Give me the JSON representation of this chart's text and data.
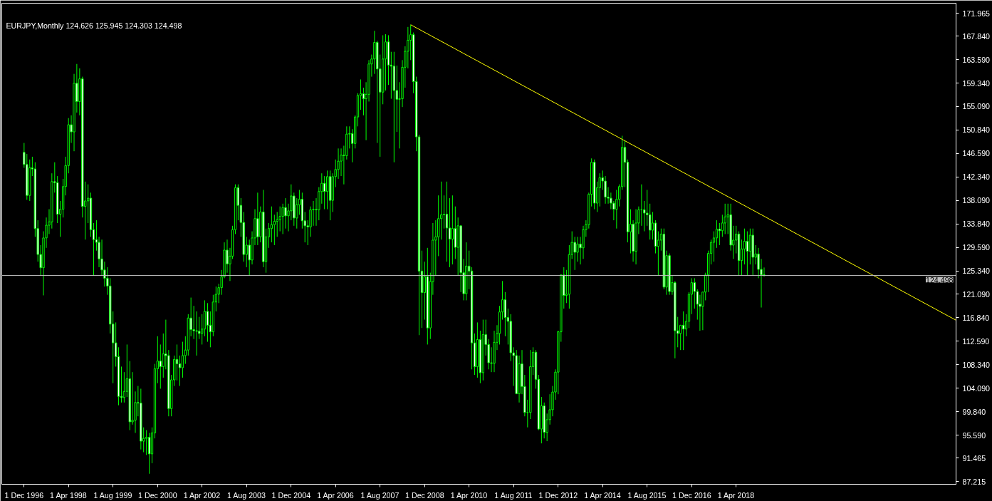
{
  "chart_data": {
    "type": "candlestick",
    "title": "EURJPY,Monthly  124.626 125.945 124.303 124.498",
    "xlim": [
      "1996-04-01",
      "2024-11-01"
    ],
    "ylim": [
      86.7,
      173.8
    ],
    "xticks": [
      {
        "value": "1996-12-01",
        "label": "1 Dec 1996"
      },
      {
        "value": "1998-04-01",
        "label": "1 Apr 1998"
      },
      {
        "value": "1999-08-01",
        "label": "1 Aug 1999"
      },
      {
        "value": "2000-12-01",
        "label": "1 Dec 2000"
      },
      {
        "value": "2002-04-01",
        "label": "1 Apr 2002"
      },
      {
        "value": "2003-08-01",
        "label": "1 Aug 2003"
      },
      {
        "value": "2004-12-01",
        "label": "1 Dec 2004"
      },
      {
        "value": "2006-04-01",
        "label": "1 Apr 2006"
      },
      {
        "value": "2007-08-01",
        "label": "1 Aug 2007"
      },
      {
        "value": "2008-12-01",
        "label": "1 Dec 2008"
      },
      {
        "value": "2010-04-01",
        "label": "1 Apr 2010"
      },
      {
        "value": "2011-08-01",
        "label": "1 Aug 2011"
      },
      {
        "value": "2012-12-01",
        "label": "1 Dec 2012"
      },
      {
        "value": "2014-04-01",
        "label": "1 Apr 2014"
      },
      {
        "value": "2015-08-01",
        "label": "1 Aug 2015"
      },
      {
        "value": "2016-12-01",
        "label": "1 Dec 2016"
      },
      {
        "value": "2018-04-01",
        "label": "1 Apr 2018"
      }
    ],
    "yticks": [
      {
        "value": 171.965,
        "label": "171.965"
      },
      {
        "value": 167.84,
        "label": "167.840"
      },
      {
        "value": 163.59,
        "label": "163.590"
      },
      {
        "value": 159.34,
        "label": "159.340"
      },
      {
        "value": 155.09,
        "label": "155.090"
      },
      {
        "value": 150.84,
        "label": "150.840"
      },
      {
        "value": 146.59,
        "label": "146.590"
      },
      {
        "value": 142.34,
        "label": "142.340"
      },
      {
        "value": 138.09,
        "label": "138.090"
      },
      {
        "value": 133.84,
        "label": "133.840"
      },
      {
        "value": 129.59,
        "label": "129.590"
      },
      {
        "value": 125.34,
        "label": "125.340"
      },
      {
        "value": 121.09,
        "label": "121.090"
      },
      {
        "value": 116.84,
        "label": "116.840"
      },
      {
        "value": 112.59,
        "label": "112.590"
      },
      {
        "value": 108.34,
        "label": "108.340"
      },
      {
        "value": 104.09,
        "label": "104.090"
      },
      {
        "value": 99.84,
        "label": "99.840"
      },
      {
        "value": 95.59,
        "label": "95.590"
      },
      {
        "value": 91.465,
        "label": "91.465"
      },
      {
        "value": 87.215,
        "label": "87.215"
      }
    ],
    "ref_lines": [
      {
        "axis": "y",
        "value": 124.498,
        "label": "124.498",
        "color": "#c0c0c0"
      }
    ],
    "series": [
      {
        "type": "candlestick",
        "color": "#00ff00",
        "x": [
          "1996-12",
          "1997-01",
          "1997-02",
          "1997-03",
          "1997-04",
          "1997-05",
          "1997-06",
          "1997-07",
          "1997-08",
          "1997-09",
          "1997-10",
          "1997-11",
          "1997-12",
          "1998-01",
          "1998-02",
          "1998-03",
          "1998-04",
          "1998-05",
          "1998-06",
          "1998-07",
          "1998-08",
          "1998-09",
          "1998-10",
          "1998-11",
          "1998-12",
          "1999-01",
          "1999-02",
          "1999-03",
          "1999-04",
          "1999-05",
          "1999-06",
          "1999-07",
          "1999-08",
          "1999-09",
          "1999-10",
          "1999-11",
          "1999-12",
          "2000-01",
          "2000-02",
          "2000-03",
          "2000-04",
          "2000-05",
          "2000-06",
          "2000-07",
          "2000-08",
          "2000-09",
          "2000-10",
          "2000-11",
          "2000-12",
          "2001-01",
          "2001-02",
          "2001-03",
          "2001-04",
          "2001-05",
          "2001-06",
          "2001-07",
          "2001-08",
          "2001-09",
          "2001-10",
          "2001-11",
          "2001-12",
          "2002-01",
          "2002-02",
          "2002-03",
          "2002-04",
          "2002-05",
          "2002-06",
          "2002-07",
          "2002-08",
          "2002-09",
          "2002-10",
          "2002-11",
          "2002-12",
          "2003-01",
          "2003-02",
          "2003-03",
          "2003-04",
          "2003-05",
          "2003-06",
          "2003-07",
          "2003-08",
          "2003-09",
          "2003-10",
          "2003-11",
          "2003-12",
          "2004-01",
          "2004-02",
          "2004-03",
          "2004-04",
          "2004-05",
          "2004-06",
          "2004-07",
          "2004-08",
          "2004-09",
          "2004-10",
          "2004-11",
          "2004-12",
          "2005-01",
          "2005-02",
          "2005-03",
          "2005-04",
          "2005-05",
          "2005-06",
          "2005-07",
          "2005-08",
          "2005-09",
          "2005-10",
          "2005-11",
          "2005-12",
          "2006-01",
          "2006-02",
          "2006-03",
          "2006-04",
          "2006-05",
          "2006-06",
          "2006-07",
          "2006-08",
          "2006-09",
          "2006-10",
          "2006-11",
          "2006-12",
          "2007-01",
          "2007-02",
          "2007-03",
          "2007-04",
          "2007-05",
          "2007-06",
          "2007-07",
          "2007-08",
          "2007-09",
          "2007-10",
          "2007-11",
          "2007-12",
          "2008-01",
          "2008-02",
          "2008-03",
          "2008-04",
          "2008-05",
          "2008-06",
          "2008-07",
          "2008-08",
          "2008-09",
          "2008-10",
          "2008-11",
          "2008-12",
          "2009-01",
          "2009-02",
          "2009-03",
          "2009-04",
          "2009-05",
          "2009-06",
          "2009-07",
          "2009-08",
          "2009-09",
          "2009-10",
          "2009-11",
          "2009-12",
          "2010-01",
          "2010-02",
          "2010-03",
          "2010-04",
          "2010-05",
          "2010-06",
          "2010-07",
          "2010-08",
          "2010-09",
          "2010-10",
          "2010-11",
          "2010-12",
          "2011-01",
          "2011-02",
          "2011-03",
          "2011-04",
          "2011-05",
          "2011-06",
          "2011-07",
          "2011-08",
          "2011-09",
          "2011-10",
          "2011-11",
          "2011-12",
          "2012-01",
          "2012-02",
          "2012-03",
          "2012-04",
          "2012-05",
          "2012-06",
          "2012-07",
          "2012-08",
          "2012-09",
          "2012-10",
          "2012-11",
          "2012-12",
          "2013-01",
          "2013-02",
          "2013-03",
          "2013-04",
          "2013-05",
          "2013-06",
          "2013-07",
          "2013-08",
          "2013-09",
          "2013-10",
          "2013-11",
          "2013-12",
          "2014-01",
          "2014-02",
          "2014-03",
          "2014-04",
          "2014-05",
          "2014-06",
          "2014-07",
          "2014-08",
          "2014-09",
          "2014-10",
          "2014-11",
          "2014-12",
          "2015-01",
          "2015-02",
          "2015-03",
          "2015-04",
          "2015-05",
          "2015-06",
          "2015-07",
          "2015-08",
          "2015-09",
          "2015-10",
          "2015-11",
          "2015-12",
          "2016-01",
          "2016-02",
          "2016-03",
          "2016-04",
          "2016-05",
          "2016-06",
          "2016-07",
          "2016-08",
          "2016-09",
          "2016-10",
          "2016-11",
          "2016-12",
          "2017-01",
          "2017-02",
          "2017-03",
          "2017-04",
          "2017-05",
          "2017-06",
          "2017-07",
          "2017-08",
          "2017-09",
          "2017-10",
          "2017-11",
          "2017-12",
          "2018-01",
          "2018-02",
          "2018-03",
          "2018-04",
          "2018-05",
          "2018-06",
          "2018-07",
          "2018-08",
          "2018-09",
          "2018-10",
          "2018-11",
          "2018-12",
          "2019-01",
          "2019-02"
        ],
        "ohlc": [
          [
            146.8,
            148.5,
            144.0,
            144.6
          ],
          [
            144.6,
            146.5,
            138.2,
            139.0
          ],
          [
            139.0,
            145.5,
            138.0,
            144.0
          ],
          [
            144.0,
            146.0,
            142.5,
            143.8
          ],
          [
            143.8,
            145.0,
            131.5,
            133.0
          ],
          [
            133.0,
            134.5,
            127.0,
            128.3
          ],
          [
            128.3,
            130.0,
            124.5,
            125.9
          ],
          [
            125.9,
            132.5,
            120.9,
            131.3
          ],
          [
            131.3,
            135.0,
            129.5,
            133.6
          ],
          [
            133.6,
            136.5,
            132.0,
            134.2
          ],
          [
            134.2,
            143.0,
            133.0,
            141.5
          ],
          [
            141.5,
            145.0,
            139.5,
            141.3
          ],
          [
            141.3,
            142.5,
            134.0,
            135.6
          ],
          [
            135.6,
            138.0,
            131.5,
            136.5
          ],
          [
            136.5,
            142.0,
            135.0,
            140.6
          ],
          [
            140.6,
            146.0,
            139.0,
            144.4
          ],
          [
            144.4,
            153.0,
            143.0,
            151.8
          ],
          [
            151.8,
            153.5,
            148.5,
            150.5
          ],
          [
            150.5,
            161.0,
            147.0,
            159.3
          ],
          [
            159.3,
            162.8,
            154.0,
            156.0
          ],
          [
            156.0,
            162.0,
            153.5,
            160.1
          ],
          [
            160.1,
            160.5,
            135.0,
            137.0
          ],
          [
            137.0,
            141.5,
            131.0,
            138.0
          ],
          [
            138.0,
            141.0,
            134.0,
            138.5
          ],
          [
            138.5,
            139.5,
            131.5,
            132.8
          ],
          [
            132.8,
            134.0,
            124.5,
            131.0
          ],
          [
            131.0,
            134.5,
            129.0,
            130.5
          ],
          [
            130.5,
            131.5,
            126.0,
            127.5
          ],
          [
            127.5,
            131.0,
            124.5,
            125.5
          ],
          [
            125.5,
            127.0,
            122.5,
            124.0
          ],
          [
            124.0,
            126.0,
            121.0,
            122.6
          ],
          [
            122.6,
            124.0,
            114.0,
            115.7
          ],
          [
            115.7,
            118.0,
            105.0,
            112.3
          ],
          [
            112.3,
            116.0,
            108.0,
            109.8
          ],
          [
            109.8,
            111.5,
            101.0,
            102.6
          ],
          [
            102.6,
            108.0,
            101.5,
            102.4
          ],
          [
            102.4,
            107.0,
            101.5,
            103.5
          ],
          [
            103.5,
            112.0,
            102.5,
            105.8
          ],
          [
            105.8,
            109.0,
            96.5,
            98.0
          ],
          [
            98.0,
            107.0,
            97.5,
            98.3
          ],
          [
            98.3,
            103.5,
            96.0,
            101.5
          ],
          [
            101.5,
            104.5,
            99.0,
            101.4
          ],
          [
            101.4,
            104.0,
            93.0,
            94.5
          ],
          [
            94.5,
            97.0,
            92.5,
            95.0
          ],
          [
            95.0,
            96.5,
            92.0,
            95.2
          ],
          [
            95.2,
            96.0,
            88.6,
            92.2
          ],
          [
            92.2,
            97.0,
            90.5,
            96.0
          ],
          [
            96.0,
            108.5,
            95.0,
            107.6
          ],
          [
            107.6,
            113.5,
            105.0,
            109.0
          ],
          [
            109.0,
            112.0,
            104.0,
            108.0
          ],
          [
            108.0,
            114.0,
            106.0,
            110.3
          ],
          [
            110.3,
            116.5,
            107.5,
            110.0
          ],
          [
            110.0,
            111.0,
            99.0,
            100.4
          ],
          [
            100.4,
            106.5,
            99.0,
            105.6
          ],
          [
            105.6,
            110.0,
            104.5,
            109.3
          ],
          [
            109.3,
            112.0,
            105.5,
            108.5
          ],
          [
            108.5,
            110.0,
            104.5,
            107.8
          ],
          [
            107.8,
            112.5,
            106.0,
            110.0
          ],
          [
            110.0,
            113.5,
            108.5,
            111.0
          ],
          [
            111.0,
            117.5,
            110.0,
            116.8
          ],
          [
            116.8,
            120.5,
            113.5,
            114.7
          ],
          [
            114.7,
            119.0,
            113.0,
            114.5
          ],
          [
            114.5,
            118.0,
            110.0,
            114.4
          ],
          [
            114.4,
            117.0,
            113.0,
            114.0
          ],
          [
            114.0,
            117.5,
            112.0,
            114.8
          ],
          [
            114.8,
            120.0,
            113.5,
            118.0
          ],
          [
            118.0,
            119.5,
            112.5,
            115.5
          ],
          [
            115.5,
            118.0,
            111.5,
            114.3
          ],
          [
            114.3,
            121.0,
            113.5,
            119.7
          ],
          [
            119.7,
            122.5,
            118.0,
            121.1
          ],
          [
            121.1,
            123.0,
            119.5,
            122.3
          ],
          [
            122.3,
            125.5,
            121.0,
            124.3
          ],
          [
            124.3,
            130.5,
            124.0,
            129.1
          ],
          [
            129.1,
            131.0,
            125.0,
            126.6
          ],
          [
            126.6,
            129.5,
            123.5,
            128.0
          ],
          [
            128.0,
            133.5,
            127.5,
            132.8
          ],
          [
            132.8,
            141.0,
            132.0,
            140.4
          ],
          [
            140.4,
            141.0,
            134.5,
            137.2
          ],
          [
            137.2,
            138.5,
            131.5,
            134.1
          ],
          [
            134.1,
            136.0,
            127.0,
            128.3
          ],
          [
            128.3,
            131.5,
            126.0,
            130.0
          ],
          [
            130.0,
            131.0,
            124.5,
            127.3
          ],
          [
            127.3,
            132.5,
            126.5,
            131.3
          ],
          [
            131.3,
            136.5,
            130.0,
            134.8
          ],
          [
            134.8,
            139.5,
            130.0,
            131.5
          ],
          [
            131.5,
            137.0,
            130.5,
            136.0
          ],
          [
            136.0,
            140.0,
            126.0,
            127.0
          ],
          [
            127.0,
            133.0,
            125.0,
            131.5
          ],
          [
            131.5,
            134.0,
            129.5,
            133.0
          ],
          [
            133.0,
            137.0,
            130.5,
            133.7
          ],
          [
            133.7,
            135.5,
            130.0,
            134.3
          ],
          [
            134.3,
            136.0,
            131.5,
            134.6
          ],
          [
            134.6,
            137.0,
            132.5,
            135.2
          ],
          [
            135.2,
            137.5,
            132.0,
            136.8
          ],
          [
            136.8,
            138.5,
            133.0,
            135.3
          ],
          [
            135.3,
            137.5,
            132.5,
            136.2
          ],
          [
            136.2,
            141.0,
            134.5,
            138.9
          ],
          [
            138.9,
            139.5,
            133.5,
            134.9
          ],
          [
            134.9,
            138.5,
            133.0,
            137.3
          ],
          [
            137.3,
            140.0,
            135.5,
            138.3
          ],
          [
            138.3,
            139.5,
            133.0,
            134.4
          ],
          [
            134.4,
            136.0,
            130.5,
            133.5
          ],
          [
            133.5,
            134.5,
            130.0,
            133.3
          ],
          [
            133.3,
            137.0,
            131.5,
            136.4
          ],
          [
            136.4,
            138.0,
            133.5,
            136.5
          ],
          [
            136.5,
            138.5,
            133.5,
            136.4
          ],
          [
            136.4,
            140.5,
            134.5,
            139.7
          ],
          [
            139.7,
            143.0,
            137.5,
            141.2
          ],
          [
            141.2,
            142.5,
            136.5,
            139.7
          ],
          [
            139.7,
            143.5,
            136.5,
            142.4
          ],
          [
            142.4,
            143.5,
            134.5,
            138.1
          ],
          [
            138.1,
            143.0,
            136.0,
            142.4
          ],
          [
            142.4,
            145.5,
            140.5,
            143.7
          ],
          [
            143.7,
            147.5,
            142.0,
            145.2
          ],
          [
            145.2,
            147.5,
            142.5,
            146.3
          ],
          [
            146.3,
            148.0,
            141.0,
            146.2
          ],
          [
            146.2,
            151.5,
            145.5,
            150.1
          ],
          [
            150.1,
            151.5,
            147.5,
            150.2
          ],
          [
            150.2,
            151.0,
            145.0,
            148.4
          ],
          [
            148.4,
            153.5,
            147.5,
            153.2
          ],
          [
            153.2,
            157.5,
            151.5,
            157.1
          ],
          [
            157.1,
            160.0,
            154.5,
            157.4
          ],
          [
            157.4,
            158.5,
            153.5,
            156.5
          ],
          [
            156.5,
            159.5,
            149.0,
            157.3
          ],
          [
            157.3,
            163.5,
            156.0,
            162.8
          ],
          [
            162.8,
            164.5,
            160.5,
            163.7
          ],
          [
            163.7,
            168.8,
            161.0,
            166.7
          ],
          [
            166.7,
            167.0,
            148.5,
            161.9
          ],
          [
            161.9,
            164.5,
            146.0,
            157.7
          ],
          [
            157.7,
            168.0,
            155.5,
            163.7
          ],
          [
            163.7,
            168.2,
            158.0,
            166.8
          ],
          [
            166.8,
            168.0,
            159.0,
            162.6
          ],
          [
            162.6,
            165.0,
            156.5,
            162.4
          ],
          [
            162.4,
            165.0,
            145.0,
            158.0
          ],
          [
            158.0,
            162.5,
            150.5,
            156.4
          ],
          [
            156.4,
            159.5,
            147.5,
            156.5
          ],
          [
            156.5,
            163.5,
            155.0,
            162.2
          ],
          [
            162.2,
            166.0,
            158.5,
            165.1
          ],
          [
            165.1,
            169.5,
            162.0,
            167.1
          ],
          [
            167.1,
            169.9,
            163.5,
            168.1
          ],
          [
            168.1,
            168.5,
            157.5,
            159.6
          ],
          [
            159.6,
            160.5,
            147.0,
            149.6
          ],
          [
            149.6,
            150.0,
            113.7,
            125.3
          ],
          [
            125.3,
            129.0,
            115.0,
            121.4
          ],
          [
            121.4,
            127.0,
            116.5,
            124.3
          ],
          [
            124.3,
            129.5,
            112.0,
            115.0
          ],
          [
            115.0,
            125.0,
            113.0,
            123.4
          ],
          [
            123.4,
            134.0,
            121.0,
            130.9
          ],
          [
            130.9,
            134.5,
            124.5,
            131.5
          ],
          [
            131.5,
            139.0,
            128.0,
            134.8
          ],
          [
            134.8,
            141.5,
            131.0,
            135.5
          ],
          [
            135.5,
            139.0,
            133.0,
            135.6
          ],
          [
            135.6,
            141.5,
            127.0,
            133.1
          ],
          [
            133.1,
            138.5,
            126.0,
            131.1
          ],
          [
            131.1,
            139.0,
            126.5,
            133.0
          ],
          [
            133.0,
            137.0,
            127.5,
            129.6
          ],
          [
            129.6,
            135.0,
            124.5,
            133.5
          ],
          [
            133.5,
            133.5,
            121.5,
            125.0
          ],
          [
            125.0,
            127.5,
            120.0,
            121.2
          ],
          [
            121.2,
            130.5,
            120.0,
            126.2
          ],
          [
            126.2,
            129.0,
            122.0,
            125.3
          ],
          [
            125.3,
            126.0,
            107.5,
            112.3
          ],
          [
            112.3,
            114.0,
            106.5,
            108.0
          ],
          [
            108.0,
            116.0,
            106.0,
            112.9
          ],
          [
            112.9,
            114.5,
            105.0,
            106.9
          ],
          [
            106.9,
            116.5,
            105.5,
            113.8
          ],
          [
            113.8,
            116.5,
            110.0,
            112.0
          ],
          [
            112.0,
            113.0,
            107.5,
            108.7
          ],
          [
            108.7,
            111.5,
            107.0,
            108.6
          ],
          [
            108.6,
            114.5,
            107.0,
            112.4
          ],
          [
            112.4,
            115.5,
            111.0,
            114.0
          ],
          [
            114.0,
            119.0,
            112.0,
            117.9
          ],
          [
            117.9,
            123.5,
            116.5,
            120.1
          ],
          [
            120.1,
            121.5,
            113.5,
            116.9
          ],
          [
            116.9,
            118.5,
            112.0,
            116.2
          ],
          [
            116.2,
            117.5,
            109.0,
            110.5
          ],
          [
            110.5,
            111.5,
            104.5,
            110.0
          ],
          [
            110.0,
            111.0,
            103.0,
            103.1
          ],
          [
            103.1,
            110.0,
            101.5,
            108.5
          ],
          [
            108.5,
            111.0,
            103.0,
            104.4
          ],
          [
            104.4,
            106.5,
            99.0,
            99.7
          ],
          [
            99.7,
            102.0,
            97.0,
            99.7
          ],
          [
            99.7,
            111.0,
            98.5,
            108.0
          ],
          [
            108.0,
            111.5,
            106.5,
            110.6
          ],
          [
            110.6,
            111.0,
            104.0,
            105.7
          ],
          [
            105.7,
            106.5,
            96.5,
            96.7
          ],
          [
            96.7,
            102.5,
            94.1,
            100.9
          ],
          [
            100.9,
            101.5,
            95.0,
            96.1
          ],
          [
            96.1,
            99.5,
            94.5,
            98.4
          ],
          [
            98.4,
            103.0,
            97.5,
            100.2
          ],
          [
            100.2,
            104.5,
            99.0,
            103.4
          ],
          [
            103.4,
            107.5,
            102.0,
            107.0
          ],
          [
            107.0,
            114.5,
            103.0,
            114.3
          ],
          [
            114.3,
            124.7,
            112.5,
            124.6
          ],
          [
            124.6,
            126.0,
            118.5,
            120.9
          ],
          [
            120.9,
            125.5,
            119.5,
            121.1
          ],
          [
            121.1,
            130.0,
            118.5,
            128.3
          ],
          [
            128.3,
            132.5,
            127.5,
            130.5
          ],
          [
            130.5,
            131.5,
            125.5,
            128.7
          ],
          [
            128.7,
            131.5,
            127.0,
            130.2
          ],
          [
            130.2,
            131.5,
            126.5,
            129.5
          ],
          [
            129.5,
            133.5,
            127.5,
            132.8
          ],
          [
            132.8,
            134.5,
            131.5,
            133.7
          ],
          [
            133.7,
            139.5,
            133.0,
            139.2
          ],
          [
            139.2,
            145.7,
            137.0,
            145.0
          ],
          [
            145.0,
            145.5,
            136.5,
            137.6
          ],
          [
            137.6,
            141.5,
            136.0,
            140.4
          ],
          [
            140.4,
            143.0,
            137.0,
            142.2
          ],
          [
            142.2,
            143.5,
            140.0,
            141.6
          ],
          [
            141.6,
            142.5,
            137.5,
            138.7
          ],
          [
            138.7,
            140.5,
            137.5,
            138.5
          ],
          [
            138.5,
            139.5,
            136.5,
            137.6
          ],
          [
            137.6,
            138.0,
            134.5,
            136.5
          ],
          [
            136.5,
            140.0,
            133.0,
            138.3
          ],
          [
            138.3,
            141.0,
            137.0,
            140.6
          ],
          [
            140.6,
            149.8,
            140.0,
            147.7
          ],
          [
            147.7,
            149.0,
            140.5,
            145.0
          ],
          [
            145.0,
            145.5,
            130.5,
            132.4
          ],
          [
            132.4,
            136.5,
            128.5,
            133.8
          ],
          [
            133.8,
            134.5,
            127.0,
            128.9
          ],
          [
            128.9,
            136.5,
            126.5,
            134.0
          ],
          [
            134.0,
            137.0,
            132.0,
            136.4
          ],
          [
            136.4,
            141.0,
            133.5,
            136.4
          ],
          [
            136.4,
            138.0,
            132.5,
            135.8
          ],
          [
            135.8,
            140.0,
            133.5,
            135.5
          ],
          [
            135.5,
            137.5,
            131.0,
            132.7
          ],
          [
            132.7,
            136.0,
            131.0,
            134.0
          ],
          [
            134.0,
            134.5,
            128.5,
            129.8
          ],
          [
            129.8,
            132.5,
            124.5,
            130.9
          ],
          [
            130.9,
            133.0,
            129.0,
            132.0
          ],
          [
            132.0,
            133.0,
            122.0,
            122.4
          ],
          [
            122.4,
            129.0,
            121.0,
            128.1
          ],
          [
            128.1,
            128.5,
            121.0,
            121.6
          ],
          [
            121.6,
            124.5,
            121.0,
            123.2
          ],
          [
            123.2,
            123.5,
            109.5,
            114.5
          ],
          [
            114.5,
            117.0,
            111.5,
            114.0
          ],
          [
            114.0,
            115.5,
            111.0,
            115.5
          ],
          [
            115.5,
            118.0,
            111.0,
            114.8
          ],
          [
            114.8,
            117.5,
            113.5,
            116.2
          ],
          [
            116.2,
            121.5,
            115.0,
            121.1
          ],
          [
            121.1,
            124.0,
            117.5,
            123.2
          ],
          [
            123.2,
            124.0,
            118.5,
            121.6
          ],
          [
            121.6,
            122.0,
            116.5,
            119.3
          ],
          [
            119.3,
            121.0,
            114.5,
            118.9
          ],
          [
            118.9,
            121.5,
            114.6,
            121.5
          ],
          [
            121.5,
            125.0,
            120.0,
            124.6
          ],
          [
            124.6,
            129.0,
            121.5,
            128.5
          ],
          [
            128.5,
            131.0,
            126.5,
            130.5
          ],
          [
            130.5,
            132.5,
            127.0,
            131.3
          ],
          [
            131.3,
            134.5,
            129.5,
            132.9
          ],
          [
            132.9,
            134.0,
            130.0,
            132.6
          ],
          [
            132.6,
            135.5,
            131.5,
            134.0
          ],
          [
            134.0,
            137.5,
            132.0,
            135.1
          ],
          [
            135.1,
            137.5,
            132.0,
            135.5
          ],
          [
            135.5,
            137.5,
            129.0,
            130.0
          ],
          [
            130.0,
            133.5,
            127.5,
            130.9
          ],
          [
            130.9,
            133.5,
            128.5,
            132.0
          ],
          [
            132.0,
            132.5,
            124.5,
            127.2
          ],
          [
            127.2,
            131.0,
            124.5,
            129.3
          ],
          [
            129.3,
            133.0,
            126.5,
            130.7
          ],
          [
            130.7,
            132.5,
            124.5,
            128.9
          ],
          [
            128.9,
            133.0,
            126.5,
            131.8
          ],
          [
            131.8,
            133.0,
            124.5,
            127.8
          ],
          [
            127.8,
            130.0,
            126.5,
            128.4
          ],
          [
            128.4,
            129.5,
            124.0,
            125.6
          ],
          [
            125.6,
            127.5,
            118.7,
            124.6
          ],
          [
            124.626,
            125.945,
            124.303,
            124.498
          ]
        ]
      },
      {
        "type": "line",
        "color": "#ffff00",
        "x": [
          "2008-07",
          "2024-11"
        ],
        "values": [
          169.9,
          116.4
        ]
      }
    ]
  }
}
